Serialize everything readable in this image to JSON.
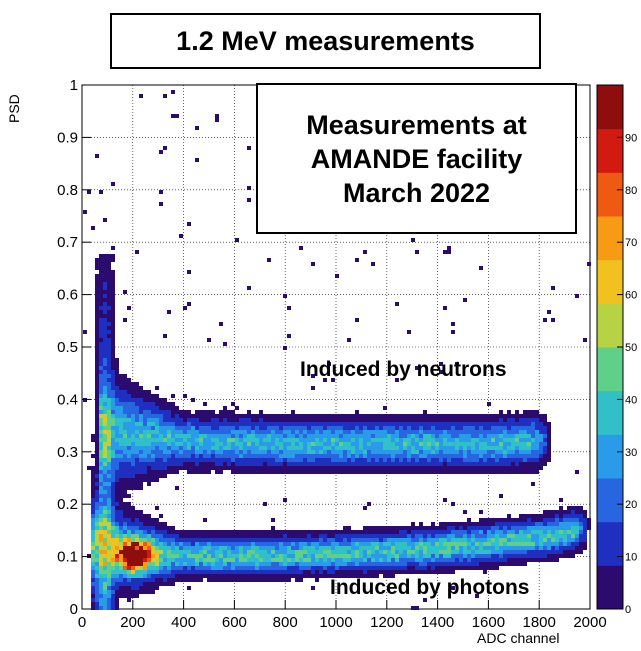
{
  "chart_data": {
    "type": "heatmap",
    "title": "1.2 MeV measurements",
    "xlabel": "ADC channel",
    "ylabel": "PSD",
    "xlim": [
      0,
      2000
    ],
    "ylim": [
      0,
      1
    ],
    "zlim": [
      0,
      100
    ],
    "x_ticks": [
      0,
      200,
      400,
      600,
      800,
      1000,
      1200,
      1400,
      1600,
      1800,
      2000
    ],
    "y_ticks": [
      0,
      0.1,
      0.2,
      0.3,
      0.4,
      0.5,
      0.6,
      0.7,
      0.8,
      0.9,
      1
    ],
    "z_ticks": [
      0,
      10,
      20,
      30,
      40,
      50,
      60,
      70,
      80,
      90
    ],
    "grid": true,
    "colorbar": "right",
    "annotations": {
      "info_lines": [
        "Measurements at",
        "AMANDE facility",
        "March 2022"
      ],
      "neutrons": "Induced by neutrons",
      "photons": "Induced by photons"
    },
    "bands": [
      {
        "label": "Induced by neutrons",
        "ridge": [
          [
            80,
            0.34
          ],
          [
            400,
            0.32
          ],
          [
            800,
            0.315
          ],
          [
            1200,
            0.315
          ],
          [
            1600,
            0.315
          ],
          [
            1800,
            0.32
          ]
        ],
        "x_range": [
          60,
          1850
        ],
        "width": 0.025,
        "peak_counts": 35
      },
      {
        "label": "Induced by photons",
        "ridge": [
          [
            100,
            0.12
          ],
          [
            200,
            0.105
          ],
          [
            600,
            0.1
          ],
          [
            1000,
            0.105
          ],
          [
            1400,
            0.115
          ],
          [
            1800,
            0.135
          ],
          [
            2000,
            0.155
          ]
        ],
        "x_range": [
          40,
          2000
        ],
        "width": 0.02,
        "peak_counts": 40
      }
    ],
    "hotspots": [
      {
        "x": 205,
        "y": 0.102,
        "peak_counts": 95
      }
    ],
    "low_adc_spike": {
      "x": [
        30,
        140
      ],
      "y": [
        0.0,
        0.68
      ],
      "peak_counts": 25
    }
  },
  "colors": {
    "palette": [
      "#2c0b6e",
      "#1f2fbf",
      "#2766e0",
      "#2a9be8",
      "#31c0c8",
      "#5fcf8a",
      "#b7d244",
      "#f1c21f",
      "#f79a14",
      "#ef5a12",
      "#d21b10",
      "#8e0e0e"
    ]
  }
}
